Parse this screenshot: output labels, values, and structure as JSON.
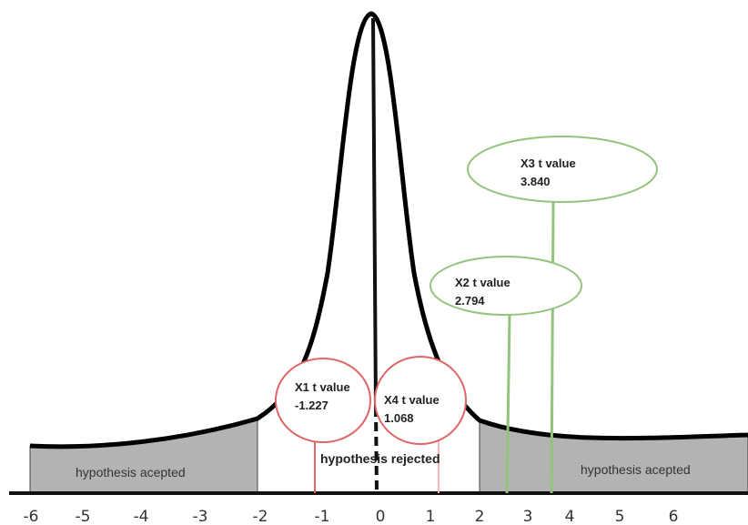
{
  "axis": {
    "ticks": [
      "-6",
      "-5",
      "-4",
      "-3",
      "-2",
      "-1",
      "0",
      "1",
      "2",
      "3",
      "4",
      "5",
      "6"
    ]
  },
  "regions": {
    "left_label": "hypothesis acepted",
    "right_label": "hypothesis acepted",
    "center_label": "hypothesis rejected"
  },
  "bubbles": {
    "x1": {
      "title": "X1 t value",
      "value": "-1.227"
    },
    "x4": {
      "title": "X4 t value",
      "value": "1.068"
    },
    "x2": {
      "title": "X2 t value",
      "value": "2.794"
    },
    "x3": {
      "title": "X3 t value",
      "value": "3.840"
    }
  },
  "colors": {
    "curve": "#000000",
    "tail_fill": "#b3b3b3",
    "red_marker": "#e06666",
    "green_marker": "#93c47d"
  }
}
